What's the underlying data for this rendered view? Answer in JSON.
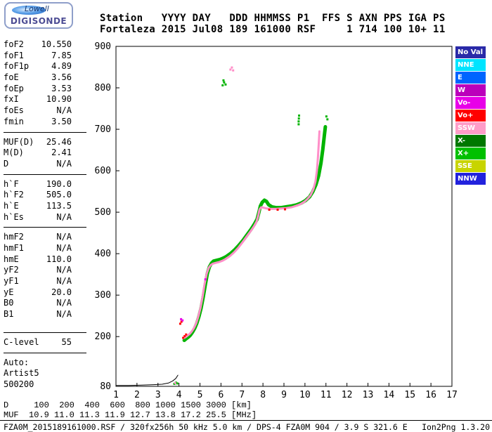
{
  "logo": {
    "brand": "Lowell",
    "product": "DIGISONDE"
  },
  "header": {
    "line1": "Station   YYYY DAY   DDD HHMMSS P1  FFS S AXN PPS IGA PS",
    "line2": "Fortaleza 2015 Jul08 189 161000 RSF     1 714 100 10+ 11"
  },
  "params": {
    "groups": [
      {
        "rows": [
          [
            "foF2",
            "10.550"
          ],
          [
            "foF1",
            "7.85"
          ],
          [
            "foF1p",
            "4.89"
          ],
          [
            "foE",
            "3.56"
          ],
          [
            "foEp",
            "3.53"
          ],
          [
            "fxI",
            "10.90"
          ],
          [
            "foEs",
            "N/A"
          ],
          [
            "fmin",
            "3.50"
          ]
        ],
        "sep_after": true,
        "sep_big": false
      },
      {
        "rows": [
          [
            "MUF(D)",
            "25.46"
          ],
          [
            "M(D)",
            "2.41"
          ],
          [
            "D",
            "N/A"
          ]
        ],
        "sep_after": true,
        "sep_big": false
      },
      {
        "rows": [
          [
            "h`F",
            "190.0"
          ],
          [
            "h`F2",
            "505.0"
          ],
          [
            "h`E",
            "113.5"
          ],
          [
            "h`Es",
            "N/A"
          ]
        ],
        "sep_after": true,
        "sep_big": false
      },
      {
        "rows": [
          [
            "hmF2",
            "N/A"
          ],
          [
            "hmF1",
            "N/A"
          ],
          [
            "hmE",
            "110.0"
          ],
          [
            "yF2",
            "N/A"
          ],
          [
            "yF1",
            "N/A"
          ],
          [
            "yE",
            "20.0"
          ],
          [
            "B0",
            "N/A"
          ],
          [
            "B1",
            "N/A"
          ]
        ],
        "sep_after": true,
        "sep_big": true
      },
      {
        "rows": [
          [
            "C-level",
            "55"
          ]
        ],
        "sep_after": true,
        "sep_big": false
      }
    ],
    "footer": [
      "Auto:",
      "Artist5",
      "500200"
    ]
  },
  "legend": {
    "items": [
      {
        "label": "No Val",
        "color": "#2a2aa8"
      },
      {
        "label": "NNE",
        "color": "#00e4ff"
      },
      {
        "label": "E",
        "color": "#0064ff"
      },
      {
        "label": "W",
        "color": "#bb00bb"
      },
      {
        "label": "Vo-",
        "color": "#e800e8"
      },
      {
        "label": "Vo+",
        "color": "#ff0000"
      },
      {
        "label": "SSW",
        "color": "#ff9cc8"
      },
      {
        "label": "X-",
        "color": "#007800"
      },
      {
        "label": "X+",
        "color": "#00c000"
      },
      {
        "label": "SSE",
        "color": "#c8d400"
      },
      {
        "label": "NNW",
        "color": "#2222dd"
      }
    ]
  },
  "chart_data": {
    "type": "scatter",
    "title": "",
    "xlabel": "",
    "ylabel": "",
    "xlim": [
      1,
      17
    ],
    "ylim": [
      80,
      900
    ],
    "x_ticks": [
      1,
      2,
      3,
      4,
      5,
      6,
      7,
      8,
      9,
      10,
      11,
      12,
      13,
      14,
      15,
      16,
      17
    ],
    "y_ticks": [
      900,
      800,
      700,
      600,
      500,
      400,
      300,
      200,
      80
    ],
    "grid": false,
    "legend_position": "right",
    "series": [
      {
        "name": "noise-baseline",
        "color": "#000000",
        "style": "line",
        "width": 1,
        "points": [
          [
            1.0,
            82
          ],
          [
            1.6,
            82
          ],
          [
            2.2,
            83
          ],
          [
            2.8,
            84
          ],
          [
            3.2,
            85
          ],
          [
            3.5,
            88
          ],
          [
            3.7,
            93
          ],
          [
            3.85,
            99
          ],
          [
            3.95,
            107
          ]
        ]
      },
      {
        "name": "x-mode-trace",
        "color": "#00b400",
        "style": "line",
        "width": 5,
        "points": [
          [
            4.25,
            191
          ],
          [
            4.35,
            195
          ],
          [
            4.45,
            199
          ],
          [
            4.55,
            204
          ],
          [
            4.65,
            211
          ],
          [
            4.75,
            220
          ],
          [
            4.85,
            232
          ],
          [
            4.95,
            248
          ],
          [
            5.05,
            268
          ],
          [
            5.15,
            294
          ],
          [
            5.25,
            324
          ],
          [
            5.35,
            352
          ],
          [
            5.45,
            368
          ],
          [
            5.55,
            377
          ],
          [
            5.65,
            382
          ],
          [
            5.8,
            384
          ],
          [
            5.95,
            386
          ],
          [
            6.1,
            389
          ],
          [
            6.25,
            393
          ],
          [
            6.45,
            400
          ],
          [
            6.65,
            409
          ],
          [
            6.85,
            420
          ],
          [
            7.05,
            432
          ],
          [
            7.25,
            446
          ],
          [
            7.45,
            460
          ],
          [
            7.6,
            472
          ],
          [
            7.72,
            483
          ],
          [
            7.8,
            498
          ],
          [
            7.88,
            515
          ],
          [
            7.97,
            524
          ],
          [
            8.07,
            529
          ],
          [
            8.17,
            526
          ],
          [
            8.27,
            518
          ],
          [
            8.42,
            513
          ],
          [
            8.62,
            511
          ],
          [
            8.87,
            511
          ],
          [
            9.12,
            513
          ],
          [
            9.37,
            515
          ],
          [
            9.62,
            518
          ],
          [
            9.82,
            522
          ],
          [
            10.02,
            528
          ],
          [
            10.22,
            537
          ],
          [
            10.37,
            549
          ],
          [
            10.52,
            566
          ],
          [
            10.65,
            588
          ],
          [
            10.76,
            618
          ],
          [
            10.85,
            652
          ],
          [
            10.92,
            684
          ],
          [
            10.97,
            706
          ]
        ]
      },
      {
        "name": "o-mode-trace",
        "color": "#ff8fc8",
        "style": "line",
        "width": 3,
        "points": [
          [
            4.22,
            196
          ],
          [
            4.32,
            199
          ],
          [
            4.42,
            203
          ],
          [
            4.52,
            207
          ],
          [
            4.62,
            213
          ],
          [
            4.72,
            221
          ],
          [
            4.82,
            232
          ],
          [
            4.92,
            248
          ],
          [
            5.02,
            268
          ],
          [
            5.12,
            295
          ],
          [
            5.22,
            327
          ],
          [
            5.32,
            352
          ],
          [
            5.42,
            366
          ],
          [
            5.52,
            373
          ],
          [
            5.62,
            376
          ],
          [
            5.77,
            378
          ],
          [
            5.92,
            380
          ],
          [
            6.07,
            383
          ],
          [
            6.22,
            387
          ],
          [
            6.42,
            394
          ],
          [
            6.62,
            403
          ],
          [
            6.82,
            414
          ],
          [
            7.02,
            427
          ],
          [
            7.22,
            441
          ],
          [
            7.42,
            455
          ],
          [
            7.57,
            466
          ],
          [
            7.69,
            477
          ],
          [
            7.77,
            491
          ],
          [
            7.84,
            507
          ],
          [
            7.92,
            512
          ],
          [
            8.02,
            511
          ],
          [
            8.17,
            509
          ],
          [
            8.37,
            508
          ],
          [
            8.62,
            508
          ],
          [
            8.87,
            509
          ],
          [
            9.12,
            510
          ],
          [
            9.37,
            512
          ],
          [
            9.57,
            515
          ],
          [
            9.77,
            519
          ],
          [
            9.97,
            525
          ],
          [
            10.12,
            532
          ],
          [
            10.27,
            541
          ],
          [
            10.4,
            555
          ],
          [
            10.5,
            574
          ],
          [
            10.57,
            600
          ],
          [
            10.62,
            634
          ],
          [
            10.66,
            668
          ],
          [
            10.69,
            695
          ]
        ]
      },
      {
        "name": "vo-plus-red-dots",
        "color": "#ff0000",
        "style": "dots",
        "size": 3,
        "points": [
          [
            4.2,
            197
          ],
          [
            4.27,
            201
          ],
          [
            4.34,
            205
          ],
          [
            4.06,
            231
          ],
          [
            4.12,
            236
          ],
          [
            8.3,
            506
          ],
          [
            8.7,
            506
          ],
          [
            9.05,
            507
          ]
        ]
      },
      {
        "name": "vo-minus-magenta-dots",
        "color": "#e800e8",
        "style": "dots",
        "size": 3,
        "points": [
          [
            4.1,
            242
          ],
          [
            4.17,
            239
          ],
          [
            5.26,
            338
          ]
        ]
      },
      {
        "name": "spread-green-dots",
        "color": "#00b400",
        "style": "dots",
        "size": 3,
        "points": [
          [
            3.78,
            86
          ],
          [
            3.86,
            89
          ],
          [
            3.92,
            87
          ],
          [
            6.08,
            806
          ],
          [
            6.15,
            813
          ],
          [
            6.22,
            808
          ],
          [
            6.12,
            818
          ],
          [
            9.7,
            712
          ],
          [
            9.7,
            719
          ],
          [
            9.71,
            726
          ],
          [
            9.72,
            733
          ],
          [
            11.02,
            731
          ],
          [
            11.07,
            724
          ]
        ]
      },
      {
        "name": "spread-pink-dots",
        "color": "#ff8fc8",
        "style": "dots",
        "size": 3,
        "points": [
          [
            3.82,
            88
          ],
          [
            6.45,
            844
          ],
          [
            6.52,
            849
          ],
          [
            6.58,
            842
          ]
        ]
      }
    ]
  },
  "footer": {
    "d_row": {
      "label": "D",
      "values": [
        "100",
        "200",
        "400",
        "600",
        "800",
        "1000",
        "1500",
        "3000"
      ],
      "unit": "[km]"
    },
    "muf_row": {
      "label": "MUF",
      "values": [
        "10.9",
        "11.0",
        "11.3",
        "11.9",
        "12.7",
        "13.8",
        "17.2",
        "25.5"
      ],
      "unit": "[MHz]"
    },
    "status_left": "FZA0M_2015189161000.RSF / 320fx256h 50 kHz 5.0 km / DPS-4 FZA0M 904 / 3.9 S 321.6 E",
    "status_right": "Ion2Png 1.3.20"
  }
}
